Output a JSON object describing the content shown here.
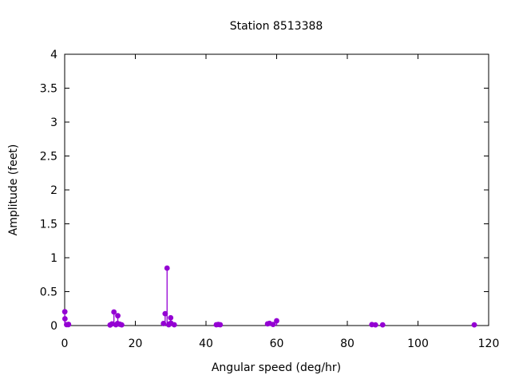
{
  "chart_data": {
    "type": "scatter",
    "style": "impulses-with-points",
    "title": "Station 8513388",
    "xlabel": "Angular speed (deg/hr)",
    "ylabel": "Amplitude (feet)",
    "xlim": [
      0,
      120
    ],
    "ylim": [
      0,
      4
    ],
    "grid": false,
    "legend_position": "none",
    "point_color": "#9400d3",
    "axis_color": "#000000",
    "background_color": "#ffffff",
    "xticks": [
      {
        "v": 0,
        "label": "0"
      },
      {
        "v": 20,
        "label": "20"
      },
      {
        "v": 40,
        "label": "40"
      },
      {
        "v": 60,
        "label": "60"
      },
      {
        "v": 80,
        "label": "80"
      },
      {
        "v": 100,
        "label": "100"
      },
      {
        "v": 120,
        "label": "120"
      }
    ],
    "yticks": [
      {
        "v": 0,
        "label": "0"
      },
      {
        "v": 0.5,
        "label": "0.5"
      },
      {
        "v": 1,
        "label": "1"
      },
      {
        "v": 1.5,
        "label": "1.5"
      },
      {
        "v": 2,
        "label": "2"
      },
      {
        "v": 2.5,
        "label": "2.5"
      },
      {
        "v": 3,
        "label": "3"
      },
      {
        "v": 3.5,
        "label": "3.5"
      },
      {
        "v": 4,
        "label": "4"
      }
    ],
    "points": [
      [
        0.041,
        0.204
      ],
      [
        0.082,
        0.1
      ],
      [
        0.544,
        0.013
      ],
      [
        1.016,
        0.014
      ],
      [
        1.098,
        0.018
      ],
      [
        12.854,
        0.008
      ],
      [
        13.399,
        0.025
      ],
      [
        13.943,
        0.2
      ],
      [
        14.497,
        0.012
      ],
      [
        14.959,
        0.03
      ],
      [
        15.041,
        0.145
      ],
      [
        15.585,
        0.02
      ],
      [
        16.139,
        0.01
      ],
      [
        27.968,
        0.03
      ],
      [
        28.439,
        0.175
      ],
      [
        28.984,
        0.847
      ],
      [
        29.456,
        0.012
      ],
      [
        29.528,
        0.022
      ],
      [
        30.0,
        0.115
      ],
      [
        30.082,
        0.035
      ],
      [
        31.016,
        0.012
      ],
      [
        42.927,
        0.012
      ],
      [
        43.476,
        0.016
      ],
      [
        44.025,
        0.012
      ],
      [
        57.424,
        0.025
      ],
      [
        57.968,
        0.032
      ],
      [
        58.984,
        0.016
      ],
      [
        59.997,
        0.07
      ],
      [
        86.952,
        0.014
      ],
      [
        87.968,
        0.01
      ],
      [
        90.0,
        0.01
      ],
      [
        115.936,
        0.01
      ]
    ]
  }
}
